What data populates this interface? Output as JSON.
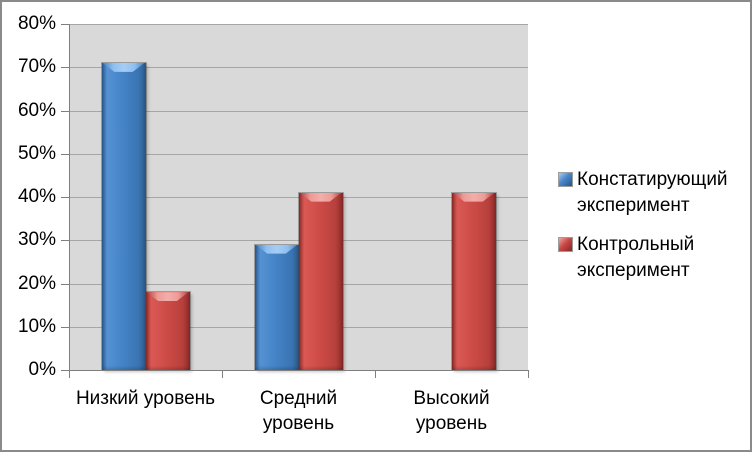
{
  "chart_data": {
    "type": "bar",
    "title": "",
    "categories": [
      "Низкий уровень",
      "Средний уровень",
      "Высокий уровень"
    ],
    "categories_display": [
      [
        "Низкий уровень"
      ],
      [
        "Средний",
        "уровень"
      ],
      [
        "Высокий",
        "уровень"
      ]
    ],
    "series": [
      {
        "name": "Констатирующий эксперимент",
        "color": "#3e7dc5",
        "values": [
          71,
          29,
          0
        ]
      },
      {
        "name": "Контрольный эксперимент",
        "color": "#cd4642",
        "values": [
          18,
          41,
          41
        ]
      }
    ],
    "ylim": [
      0,
      80
    ],
    "ytick_step": 10,
    "ytick_labels": [
      "0%",
      "10%",
      "20%",
      "30%",
      "40%",
      "50%",
      "60%",
      "70%",
      "80%"
    ],
    "grid": true,
    "legend_position": "right",
    "legend_items": [
      {
        "lines": [
          "Констатирующий",
          "эксперимент"
        ],
        "color": "#3e7dc5"
      },
      {
        "lines": [
          "Контрольный",
          "эксперимент"
        ],
        "color": "#cd4642"
      }
    ]
  },
  "colors": {
    "plot_bg": "#d9d9d9",
    "gridline": "#a6a6a6",
    "axis": "#7f7f7f",
    "frame_border": "#8a8a8a",
    "text": "#000000",
    "background": "#ffffff"
  }
}
